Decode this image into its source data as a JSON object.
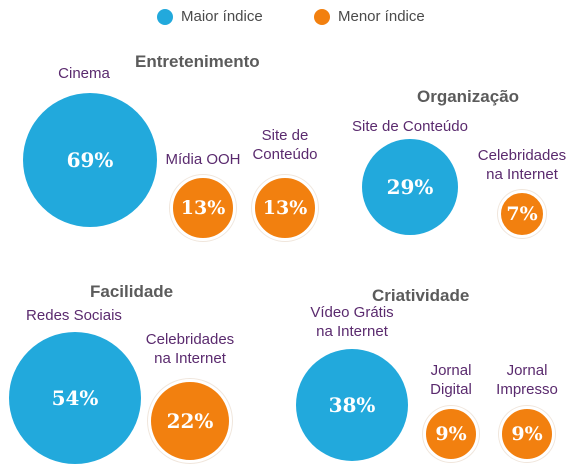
{
  "legend": [
    {
      "label": "Maior índice",
      "color": "#22a9dc"
    },
    {
      "label": "Menor índice",
      "color": "#f2800f"
    }
  ],
  "chart_data": [
    {
      "type": "bubble",
      "title": "Entretenimento",
      "points": [
        {
          "label": "Cinema",
          "value": 69,
          "display": "69%",
          "group": "Maior índice"
        },
        {
          "label": "Mídia OOH",
          "value": 13,
          "display": "13%",
          "group": "Menor índice"
        },
        {
          "label": "Site de\nConteúdo",
          "value": 13,
          "display": "13%",
          "group": "Menor índice"
        }
      ]
    },
    {
      "type": "bubble",
      "title": "Organização",
      "points": [
        {
          "label": "Site de Conteúdo",
          "value": 29,
          "display": "29%",
          "group": "Maior índice"
        },
        {
          "label": "Celebridades\nna Internet",
          "value": 7,
          "display": "7%",
          "group": "Menor índice"
        }
      ]
    },
    {
      "type": "bubble",
      "title": "Facilidade",
      "points": [
        {
          "label": "Redes Sociais",
          "value": 54,
          "display": "54%",
          "group": "Maior índice"
        },
        {
          "label": "Celebridades\nna Internet",
          "value": 22,
          "display": "22%",
          "group": "Menor índice"
        }
      ]
    },
    {
      "type": "bubble",
      "title": "Criatividade",
      "points": [
        {
          "label": "Vídeo Grátis\nna Internet",
          "value": 38,
          "display": "38%",
          "group": "Maior índice"
        },
        {
          "label": "Jornal\nDigital",
          "value": 9,
          "display": "9%",
          "group": "Menor índice"
        },
        {
          "label": "Jornal\nImpresso",
          "value": 9,
          "display": "9%",
          "group": "Menor índice"
        }
      ]
    }
  ]
}
